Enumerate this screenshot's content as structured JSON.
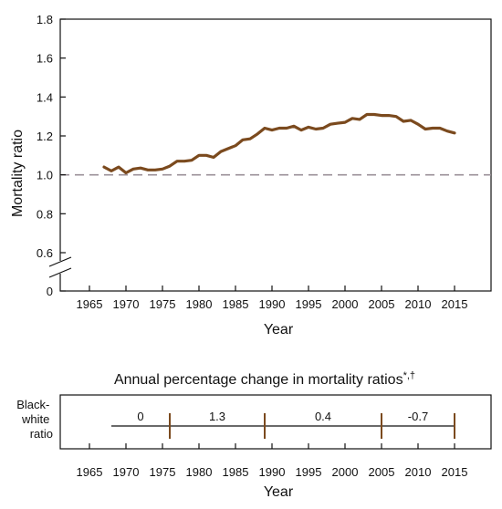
{
  "chart_data": [
    {
      "type": "line",
      "title": "",
      "xlabel": "Year",
      "ylabel": "Mortality ratio",
      "x_ticks": [
        1965,
        1970,
        1975,
        1980,
        1985,
        1990,
        1995,
        2000,
        2005,
        2010,
        2015
      ],
      "y_ticks": [
        "0",
        "0.6",
        "0.8",
        "1.0",
        "1.2",
        "1.4",
        "1.6",
        "1.8"
      ],
      "xlim": [
        1961,
        2020
      ],
      "ylim": [
        0.5,
        1.8
      ],
      "axis_break": true,
      "reference_line": 1.0,
      "line_color": "#7b4a1e",
      "reference_color": "#9b9199",
      "series": [
        {
          "x": [
            1967,
            1968,
            1969,
            1970,
            1971,
            1972,
            1973,
            1974,
            1975,
            1976,
            1977,
            1978,
            1979,
            1980,
            1981,
            1982,
            1983,
            1984,
            1985,
            1986,
            1987,
            1988,
            1989,
            1990,
            1991,
            1992,
            1993,
            1994,
            1995,
            1996,
            1997,
            1998,
            1999,
            2000,
            2001,
            2002,
            2003,
            2004,
            2005,
            2006,
            2007,
            2008,
            2009,
            2010,
            2011,
            2012,
            2013,
            2014,
            2015
          ],
          "y": [
            1.04,
            1.02,
            1.04,
            1.01,
            1.03,
            1.035,
            1.025,
            1.025,
            1.03,
            1.045,
            1.07,
            1.07,
            1.075,
            1.1,
            1.1,
            1.09,
            1.12,
            1.135,
            1.15,
            1.18,
            1.185,
            1.21,
            1.24,
            1.23,
            1.24,
            1.24,
            1.25,
            1.23,
            1.245,
            1.235,
            1.24,
            1.26,
            1.265,
            1.27,
            1.29,
            1.285,
            1.31,
            1.31,
            1.305,
            1.305,
            1.3,
            1.275,
            1.28,
            1.26,
            1.235,
            1.24,
            1.24,
            1.225,
            1.215
          ]
        }
      ]
    },
    {
      "type": "table",
      "title": "Annual percentage change in mortality ratios*,†",
      "xlabel": "Year",
      "row_label": [
        "Black-",
        "white",
        "ratio"
      ],
      "x_ticks": [
        1965,
        1970,
        1975,
        1980,
        1985,
        1990,
        1995,
        2000,
        2005,
        2010,
        2015
      ],
      "xlim": [
        1961,
        2020
      ],
      "line_start": 1968,
      "line_end": 2015,
      "breakpoints": [
        1976,
        1989,
        2005,
        2015
      ],
      "segments": [
        {
          "label": "0",
          "start": 1968,
          "end": 1976
        },
        {
          "label": "1.3",
          "start": 1976,
          "end": 1989
        },
        {
          "label": "0.4",
          "start": 1989,
          "end": 2005
        },
        {
          "label": "-0.7",
          "start": 2005,
          "end": 2015
        }
      ],
      "breakpoint_color": "#7b4a1e"
    }
  ]
}
